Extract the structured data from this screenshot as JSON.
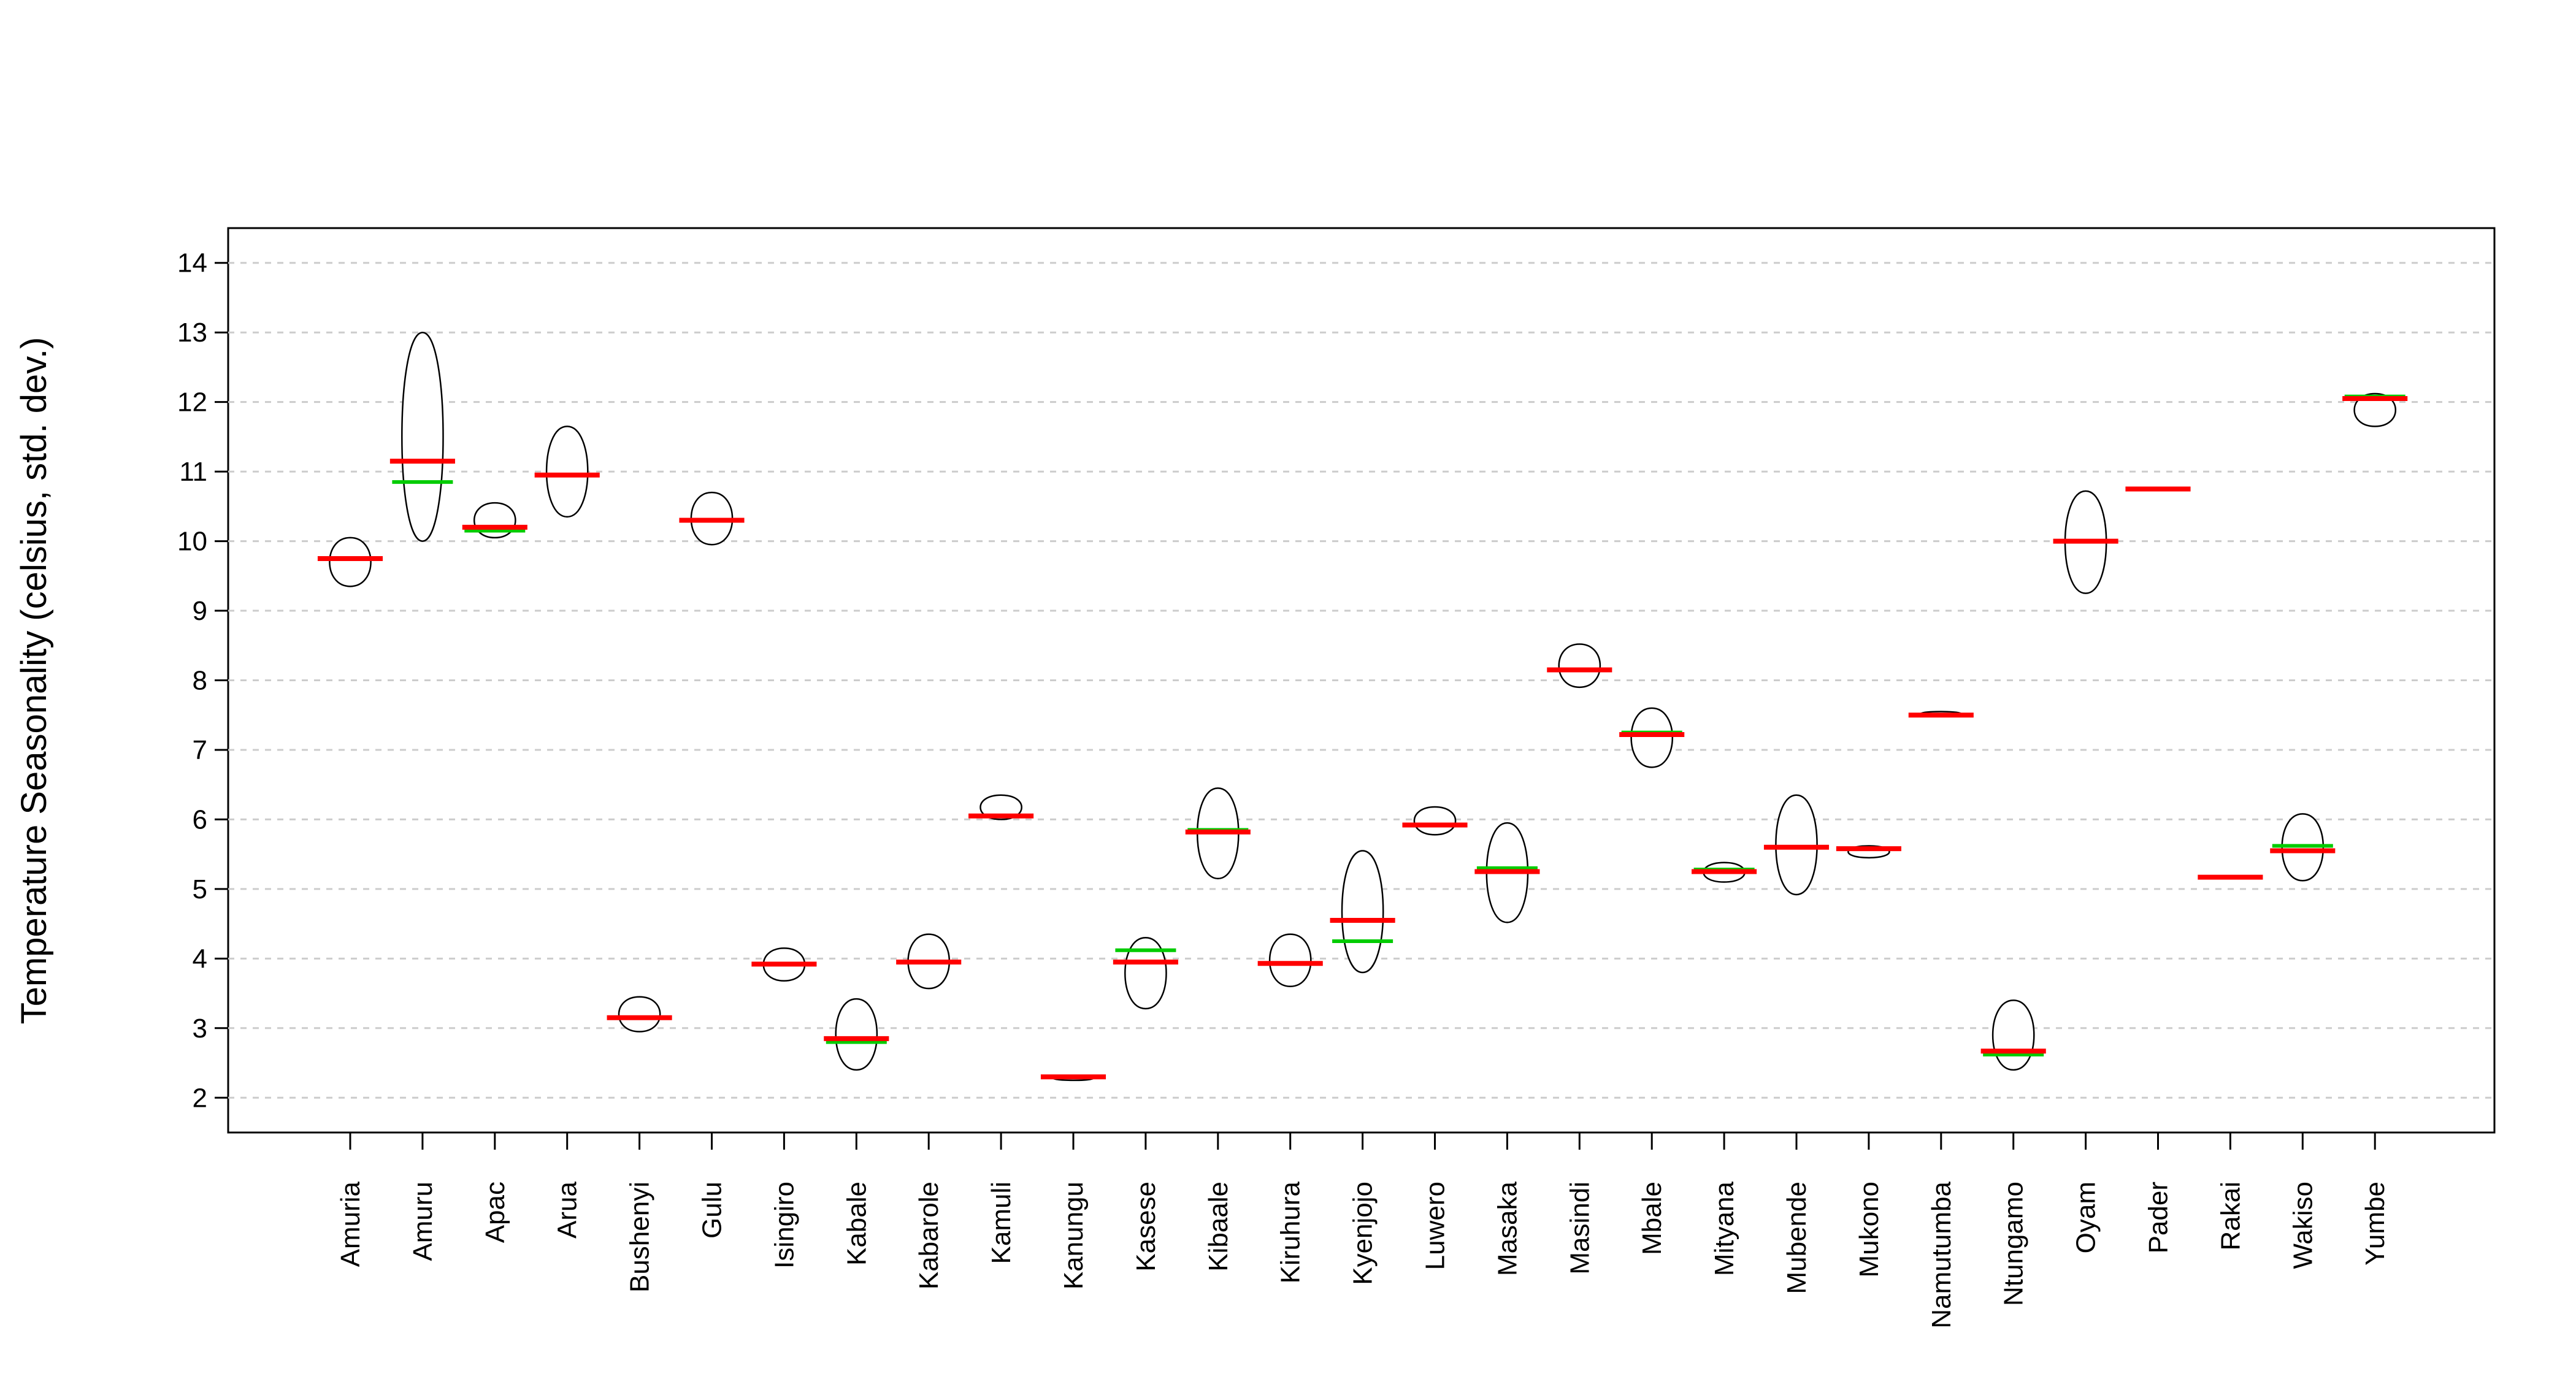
{
  "chart_data": {
    "type": "bean",
    "y_label": "Temperature Seasonality (celsius, std. dev.)",
    "categories": [
      "Amuria",
      "Amuru",
      "Apac",
      "Arua",
      "Bushenyi",
      "Gulu",
      "Isingiro",
      "Kabale",
      "Kabarole",
      "Kamuli",
      "Kanungu",
      "Kasese",
      "Kibaale",
      "Kiruhura",
      "Kyenjojo",
      "Luwero",
      "Masaka",
      "Masindi",
      "Mbale",
      "Mityana",
      "Mubende",
      "Mukono",
      "Namutumba",
      "Ntungamo",
      "Oyam",
      "Pader",
      "Rakai",
      "Wakiso",
      "Yumbe"
    ],
    "values": [
      9.75,
      11.15,
      10.2,
      10.95,
      3.15,
      10.3,
      3.92,
      2.85,
      3.95,
      6.05,
      2.3,
      3.95,
      5.82,
      3.93,
      4.55,
      5.92,
      5.25,
      8.15,
      7.22,
      5.25,
      5.6,
      5.58,
      7.5,
      2.67,
      10.0,
      10.75,
      5.17,
      5.55,
      12.05
    ],
    "medians": [
      9.75,
      10.85,
      10.15,
      10.95,
      3.15,
      10.3,
      3.92,
      2.8,
      3.95,
      6.05,
      2.3,
      4.12,
      5.85,
      3.93,
      4.25,
      5.92,
      5.3,
      8.15,
      7.25,
      5.28,
      5.6,
      5.58,
      7.5,
      2.62,
      10.0,
      10.75,
      5.17,
      5.62,
      12.08
    ],
    "lows": [
      9.35,
      10.0,
      10.05,
      10.35,
      2.95,
      9.95,
      3.68,
      2.4,
      3.57,
      6.0,
      2.25,
      3.28,
      5.15,
      3.6,
      3.8,
      5.78,
      4.52,
      7.9,
      6.75,
      5.1,
      4.92,
      5.45,
      7.48,
      2.4,
      9.25,
      10.73,
      5.16,
      5.12,
      11.65
    ],
    "highs": [
      10.05,
      13.0,
      10.55,
      11.65,
      3.45,
      10.7,
      4.15,
      3.42,
      4.35,
      6.35,
      2.32,
      4.3,
      6.45,
      4.35,
      5.55,
      6.18,
      5.95,
      8.52,
      7.6,
      5.38,
      6.35,
      5.62,
      7.55,
      3.4,
      10.72,
      10.77,
      5.18,
      6.08,
      12.12
    ],
    "mean_color": "#ff0000",
    "median_color": "#00cc00",
    "ylim": [
      1.5,
      14.5
    ],
    "yticks": [
      2,
      3,
      4,
      5,
      6,
      7,
      8,
      9,
      10,
      11,
      12,
      13,
      14
    ],
    "grid": true
  }
}
